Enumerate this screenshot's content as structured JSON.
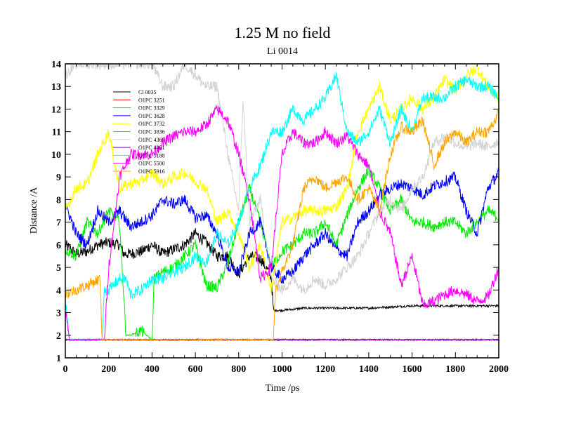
{
  "chart_data": {
    "type": "line",
    "title": "1.25 M no field",
    "subtitle": "Li 0014",
    "xlabel": "Time /ps",
    "ylabel": "Distance /A",
    "xlim": [
      0,
      2000
    ],
    "ylim": [
      1,
      14
    ],
    "xticks": [
      0,
      200,
      400,
      600,
      800,
      1000,
      1200,
      1400,
      1600,
      1800,
      2000
    ],
    "yticks": [
      1,
      2,
      3,
      4,
      5,
      6,
      7,
      8,
      9,
      10,
      11,
      12,
      13,
      14
    ],
    "grid": false,
    "legend_position": "top-left",
    "series": [
      {
        "name": "Cl 0035",
        "color": "#000000",
        "points": [
          [
            0,
            6
          ],
          [
            50,
            5.6
          ],
          [
            100,
            5.7
          ],
          [
            150,
            6
          ],
          [
            200,
            6.1
          ],
          [
            250,
            6
          ],
          [
            270,
            5.6
          ],
          [
            300,
            5.6
          ],
          [
            350,
            5.7
          ],
          [
            400,
            6
          ],
          [
            450,
            5.6
          ],
          [
            500,
            5.8
          ],
          [
            550,
            6
          ],
          [
            600,
            6.5
          ],
          [
            650,
            6.1
          ],
          [
            700,
            5.5
          ],
          [
            750,
            5.5
          ],
          [
            800,
            4.7
          ],
          [
            850,
            5.5
          ],
          [
            900,
            5.4
          ],
          [
            950,
            4.6
          ],
          [
            960,
            3.1
          ],
          [
            1000,
            3.1
          ],
          [
            1100,
            3.2
          ],
          [
            1200,
            3.2
          ],
          [
            1400,
            3.2
          ],
          [
            1600,
            3.3
          ],
          [
            1800,
            3.3
          ],
          [
            2000,
            3.3
          ]
        ]
      },
      {
        "name": "O1PC 3251",
        "color": "#ff0000",
        "points": [
          [
            0,
            1.8
          ],
          [
            2000,
            1.8
          ]
        ]
      },
      {
        "name": "O1PC 3329",
        "color": "#00ee00",
        "points": [
          [
            0,
            5.8
          ],
          [
            50,
            5.5
          ],
          [
            100,
            7
          ],
          [
            150,
            6.5
          ],
          [
            200,
            7.5
          ],
          [
            250,
            7
          ],
          [
            280,
            2
          ],
          [
            300,
            2
          ],
          [
            350,
            2.2
          ],
          [
            400,
            1.8
          ],
          [
            410,
            4.5
          ],
          [
            450,
            4.8
          ],
          [
            500,
            5
          ],
          [
            550,
            5.5
          ],
          [
            600,
            6
          ],
          [
            650,
            4.2
          ],
          [
            700,
            4.1
          ],
          [
            750,
            5.2
          ],
          [
            800,
            7
          ],
          [
            850,
            8.5
          ],
          [
            900,
            7
          ],
          [
            950,
            5
          ],
          [
            1000,
            5.7
          ],
          [
            1050,
            6
          ],
          [
            1100,
            6.5
          ],
          [
            1150,
            6.5
          ],
          [
            1200,
            7
          ],
          [
            1250,
            6
          ],
          [
            1300,
            7.3
          ],
          [
            1350,
            8.5
          ],
          [
            1400,
            9.3
          ],
          [
            1450,
            8.5
          ],
          [
            1500,
            7.5
          ],
          [
            1550,
            8
          ],
          [
            1600,
            7
          ],
          [
            1650,
            7
          ],
          [
            1700,
            6.8
          ],
          [
            1750,
            7
          ],
          [
            1800,
            7
          ],
          [
            1850,
            6.5
          ],
          [
            1900,
            7
          ],
          [
            1950,
            7.5
          ],
          [
            2000,
            7.2
          ]
        ]
      },
      {
        "name": "O1PC 3628",
        "color": "#0000ff",
        "points": [
          [
            0,
            7.8
          ],
          [
            50,
            6.5
          ],
          [
            100,
            6
          ],
          [
            150,
            7.5
          ],
          [
            200,
            7
          ],
          [
            250,
            7.5
          ],
          [
            300,
            6.8
          ],
          [
            350,
            7
          ],
          [
            400,
            7.3
          ],
          [
            450,
            8
          ],
          [
            500,
            7.8
          ],
          [
            550,
            8
          ],
          [
            600,
            7.2
          ],
          [
            650,
            7.3
          ],
          [
            700,
            6.5
          ],
          [
            750,
            5
          ],
          [
            800,
            4.8
          ],
          [
            850,
            6.5
          ],
          [
            900,
            7
          ],
          [
            950,
            5
          ],
          [
            1000,
            4.5
          ],
          [
            1050,
            4.8
          ],
          [
            1100,
            5.5
          ],
          [
            1150,
            6
          ],
          [
            1200,
            6.5
          ],
          [
            1250,
            5.8
          ],
          [
            1300,
            5.5
          ],
          [
            1350,
            7
          ],
          [
            1400,
            7.5
          ],
          [
            1450,
            8.2
          ],
          [
            1500,
            8.5
          ],
          [
            1550,
            8.7
          ],
          [
            1600,
            8.5
          ],
          [
            1650,
            8.2
          ],
          [
            1700,
            8.6
          ],
          [
            1750,
            8.8
          ],
          [
            1800,
            9
          ],
          [
            1850,
            7.5
          ],
          [
            1900,
            6.5
          ],
          [
            1950,
            8.5
          ],
          [
            2000,
            9.2
          ]
        ]
      },
      {
        "name": "O1PC 3732",
        "color": "#ffff00",
        "points": [
          [
            0,
            7.5
          ],
          [
            50,
            8.5
          ],
          [
            100,
            8.7
          ],
          [
            150,
            10
          ],
          [
            200,
            11
          ],
          [
            250,
            8.5
          ],
          [
            300,
            8.7
          ],
          [
            350,
            8.8
          ],
          [
            400,
            9.2
          ],
          [
            450,
            8.7
          ],
          [
            500,
            9
          ],
          [
            550,
            9.2
          ],
          [
            600,
            8.8
          ],
          [
            650,
            8.5
          ],
          [
            700,
            7
          ],
          [
            750,
            7.5
          ],
          [
            800,
            6.5
          ],
          [
            850,
            5
          ],
          [
            900,
            6
          ],
          [
            950,
            4
          ],
          [
            1000,
            7
          ],
          [
            1050,
            7.2
          ],
          [
            1100,
            7.5
          ],
          [
            1150,
            7.5
          ],
          [
            1200,
            7.5
          ],
          [
            1250,
            7.7
          ],
          [
            1300,
            8.5
          ],
          [
            1350,
            11
          ],
          [
            1400,
            12
          ],
          [
            1450,
            13
          ],
          [
            1500,
            11.5
          ],
          [
            1550,
            12
          ],
          [
            1600,
            12.5
          ],
          [
            1650,
            12
          ],
          [
            1700,
            12.5
          ],
          [
            1750,
            13.3
          ],
          [
            1800,
            12.8
          ],
          [
            1850,
            13.5
          ],
          [
            1900,
            13.8
          ],
          [
            1950,
            13
          ],
          [
            2000,
            12.5
          ]
        ]
      },
      {
        "name": "O1PC 3836",
        "color": "#b09080",
        "points": [
          [
            0,
            1.8
          ],
          [
            2000,
            1.8
          ]
        ]
      },
      {
        "name": "O1PC 4369",
        "color": "#d3d3d3",
        "points": [
          [
            0,
            13.5
          ],
          [
            50,
            14
          ],
          [
            100,
            14
          ],
          [
            200,
            14
          ],
          [
            300,
            14
          ],
          [
            400,
            14
          ],
          [
            450,
            13
          ],
          [
            500,
            13
          ],
          [
            550,
            14
          ],
          [
            600,
            13.5
          ],
          [
            650,
            13
          ],
          [
            700,
            13
          ],
          [
            750,
            10
          ],
          [
            800,
            7.5
          ],
          [
            820,
            12.5
          ],
          [
            850,
            7
          ],
          [
            900,
            8
          ],
          [
            950,
            4.5
          ],
          [
            1000,
            4
          ],
          [
            1050,
            4.5
          ],
          [
            1100,
            4
          ],
          [
            1150,
            4.5
          ],
          [
            1200,
            4.2
          ],
          [
            1250,
            4.5
          ],
          [
            1300,
            5
          ],
          [
            1350,
            5.5
          ],
          [
            1400,
            6.5
          ],
          [
            1450,
            7.5
          ],
          [
            1500,
            8
          ],
          [
            1550,
            7.5
          ],
          [
            1600,
            8.5
          ],
          [
            1650,
            9
          ],
          [
            1700,
            10.5
          ],
          [
            1750,
            10.8
          ],
          [
            1800,
            10.5
          ],
          [
            1850,
            10.3
          ],
          [
            1900,
            10.5
          ],
          [
            1950,
            10.3
          ],
          [
            2000,
            10.6
          ]
        ]
      },
      {
        "name": "O1PC 4451",
        "color": "#8000c0",
        "points": [
          [
            0,
            1.8
          ],
          [
            2000,
            1.8
          ]
        ]
      },
      {
        "name": "O1PC 5188",
        "color": "#00ffff",
        "points": [
          [
            0,
            3.5
          ],
          [
            20,
            1.8
          ],
          [
            100,
            1.8
          ],
          [
            170,
            1.8
          ],
          [
            180,
            4
          ],
          [
            200,
            4
          ],
          [
            250,
            4.5
          ],
          [
            280,
            4.5
          ],
          [
            300,
            3.8
          ],
          [
            350,
            4
          ],
          [
            400,
            4.5
          ],
          [
            450,
            4.5
          ],
          [
            500,
            4.8
          ],
          [
            550,
            5
          ],
          [
            600,
            5.5
          ],
          [
            650,
            5.2
          ],
          [
            700,
            6.5
          ],
          [
            750,
            6
          ],
          [
            800,
            7
          ],
          [
            850,
            8.5
          ],
          [
            900,
            9.5
          ],
          [
            950,
            11
          ],
          [
            1000,
            11
          ],
          [
            1050,
            12
          ],
          [
            1100,
            11.5
          ],
          [
            1150,
            12
          ],
          [
            1200,
            12.5
          ],
          [
            1250,
            13.5
          ],
          [
            1300,
            11
          ],
          [
            1350,
            10.5
          ],
          [
            1400,
            11
          ],
          [
            1450,
            12
          ],
          [
            1500,
            10.5
          ],
          [
            1550,
            12
          ],
          [
            1600,
            11
          ],
          [
            1650,
            12.5
          ],
          [
            1700,
            12.5
          ],
          [
            1750,
            12.5
          ],
          [
            1800,
            13
          ],
          [
            1850,
            13.3
          ],
          [
            1900,
            13
          ],
          [
            1950,
            13
          ],
          [
            2000,
            12.5
          ]
        ]
      },
      {
        "name": "O1PC 5500",
        "color": "#ff00ff",
        "points": [
          [
            0,
            3
          ],
          [
            20,
            1.8
          ],
          [
            100,
            1.8
          ],
          [
            180,
            1.8
          ],
          [
            200,
            5
          ],
          [
            250,
            9
          ],
          [
            300,
            10
          ],
          [
            350,
            10
          ],
          [
            400,
            10
          ],
          [
            450,
            10.5
          ],
          [
            500,
            10.8
          ],
          [
            550,
            11
          ],
          [
            600,
            11
          ],
          [
            650,
            11.3
          ],
          [
            700,
            12
          ],
          [
            750,
            11.5
          ],
          [
            800,
            10
          ],
          [
            850,
            8
          ],
          [
            900,
            4.5
          ],
          [
            950,
            5
          ],
          [
            1000,
            10
          ],
          [
            1050,
            11
          ],
          [
            1100,
            10.5
          ],
          [
            1150,
            10.5
          ],
          [
            1200,
            11
          ],
          [
            1250,
            10.5
          ],
          [
            1300,
            10.8
          ],
          [
            1350,
            10
          ],
          [
            1400,
            9.5
          ],
          [
            1450,
            7.5
          ],
          [
            1500,
            6.5
          ],
          [
            1550,
            4.2
          ],
          [
            1600,
            5.5
          ],
          [
            1650,
            3.3
          ],
          [
            1700,
            3.5
          ],
          [
            1750,
            3.8
          ],
          [
            1800,
            4
          ],
          [
            1850,
            3.8
          ],
          [
            1900,
            3.5
          ],
          [
            1950,
            3.7
          ],
          [
            2000,
            5
          ]
        ]
      },
      {
        "name": "O1PC 5916",
        "color": "#ffa500",
        "points": [
          [
            0,
            3.8
          ],
          [
            50,
            4
          ],
          [
            100,
            4.2
          ],
          [
            160,
            4.5
          ],
          [
            170,
            1.8
          ],
          [
            300,
            1.8
          ],
          [
            960,
            1.8
          ],
          [
            970,
            4
          ],
          [
            1000,
            4.8
          ],
          [
            1050,
            6
          ],
          [
            1100,
            8.5
          ],
          [
            1150,
            9
          ],
          [
            1200,
            8.5
          ],
          [
            1250,
            8.8
          ],
          [
            1300,
            9
          ],
          [
            1350,
            8
          ],
          [
            1400,
            8.5
          ],
          [
            1450,
            7.5
          ],
          [
            1500,
            10
          ],
          [
            1550,
            11.2
          ],
          [
            1600,
            11
          ],
          [
            1650,
            11.5
          ],
          [
            1700,
            9.5
          ],
          [
            1750,
            10.5
          ],
          [
            1800,
            11
          ],
          [
            1850,
            10.5
          ],
          [
            1900,
            11
          ],
          [
            1950,
            11
          ],
          [
            2000,
            11.8
          ]
        ]
      }
    ]
  }
}
